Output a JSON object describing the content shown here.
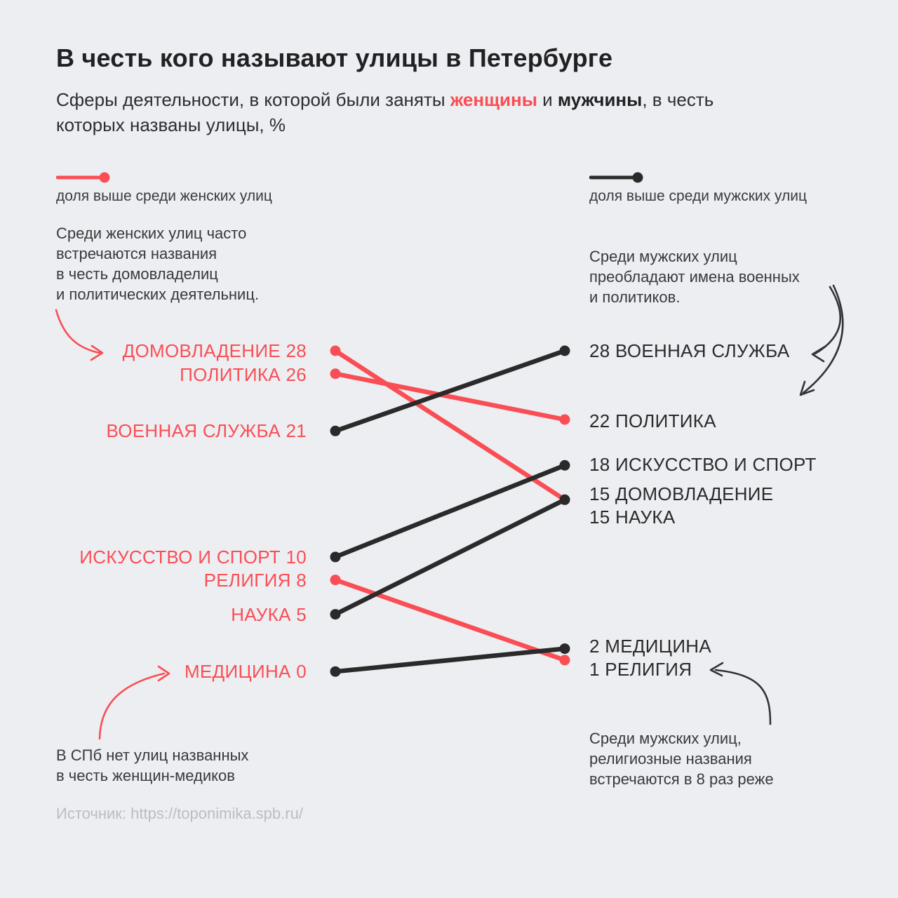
{
  "theme": {
    "background": "#EDEEF2",
    "red": "#F94E54",
    "black": "#2B2A2B",
    "text_dark": "#212123",
    "text_gray": "#39393B",
    "source_gray": "#B9BDC5"
  },
  "header": {
    "title": "В честь кого называют улицы в Петербурге",
    "subtitle_prefix": "Сферы деятельности, в которой были заняты ",
    "subtitle_women": "женщины",
    "subtitle_and": " и ",
    "subtitle_men": "мужчины",
    "subtitle_suffix": ", в честь\nкоторых названы улицы, %"
  },
  "legend": {
    "women_label": "доля выше среди женских улиц",
    "men_label": "доля выше среди мужских улиц"
  },
  "annotations": {
    "top_left": "Среди женских улиц часто\nвстречаются названия\nв честь домовладелиц\nи политических деятельниц.",
    "top_right": "Среди мужских улиц\nпреобладают имена военных\nи политиков.",
    "bottom_left": "В СПб нет улиц названных\nв честь женщин-медиков",
    "bottom_right": "Среди мужских улиц,\nрелигиозные названия\nвстречаются в 8 раз реже"
  },
  "source": {
    "text": "Источник: https://toponimika.spb.ru/"
  },
  "chart_data": {
    "type": "line",
    "subtype": "slope-chart",
    "title": "В честь кого называют улицы в Петербурге",
    "unit": "%",
    "left_column": "женские улицы",
    "right_column": "мужские улицы",
    "value_range": [
      0,
      28
    ],
    "colors": {
      "women": "#F94E54",
      "men": "#2B2A2B"
    },
    "categories": [
      {
        "name": "ДОМОВЛАДЕНИЕ",
        "women": 28,
        "men": 15,
        "higher": "women"
      },
      {
        "name": "ПОЛИТИКА",
        "women": 26,
        "men": 22,
        "higher": "women"
      },
      {
        "name": "ВОЕННАЯ СЛУЖБА",
        "women": 21,
        "men": 28,
        "higher": "men"
      },
      {
        "name": "ИСКУССТВО И СПОРТ",
        "women": 10,
        "men": 18,
        "higher": "men"
      },
      {
        "name": "РЕЛИГИЯ",
        "women": 8,
        "men": 1,
        "higher": "women"
      },
      {
        "name": "НАУКА",
        "women": 5,
        "men": 15,
        "higher": "men"
      },
      {
        "name": "МЕДИЦИНА",
        "women": 0,
        "men": 2,
        "higher": "men"
      }
    ],
    "left_labels": [
      "ДОМОВЛАДЕНИЕ 28",
      "ПОЛИТИКА 26",
      "ВОЕННАЯ СЛУЖБА 21",
      "ИСКУССТВО И СПОРТ 10",
      "РЕЛИГИЯ 8",
      "НАУКА 5",
      "МЕДИЦИНА 0"
    ],
    "right_labels": [
      "28 ВОЕННАЯ СЛУЖБА",
      "22 ПОЛИТИКА",
      "18 ИСКУССТВО И СПОРТ",
      "15 ДОМОВЛАДЕНИЕ",
      "15 НАУКА",
      "2 МЕДИЦИНА",
      "1 РЕЛИГИЯ"
    ]
  }
}
